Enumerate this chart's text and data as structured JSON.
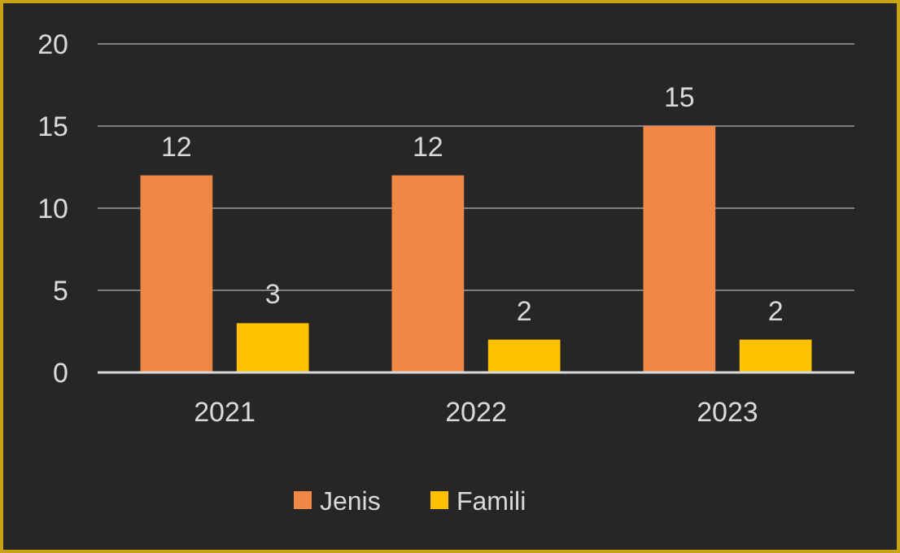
{
  "chart_data": {
    "type": "bar",
    "categories": [
      "2021",
      "2022",
      "2023"
    ],
    "series": [
      {
        "name": "Jenis",
        "color": "#ef8844",
        "values": [
          12,
          12,
          15
        ]
      },
      {
        "name": "Famili",
        "color": "#ffc000",
        "values": [
          3,
          2,
          2
        ]
      }
    ],
    "ylim": [
      0,
      20
    ],
    "yticks": [
      0,
      5,
      10,
      15,
      20
    ],
    "grid": "y",
    "legend": "bottom",
    "data_labels": true
  }
}
